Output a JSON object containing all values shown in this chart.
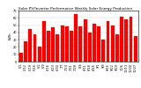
{
  "title": "Solar PV/Inverter Performance Weekly Solar Energy Production",
  "ylabel": "kWh",
  "bar_color": "#ff0000",
  "edge_color": "#cc0000",
  "background_color": "#ffffff",
  "plot_bg_color": "#ffffff",
  "grid_color": "#bbbbbb",
  "weeks": [
    "5/5",
    "5/12",
    "5/19",
    "5/26",
    "6/2",
    "6/9",
    "6/16",
    "6/23",
    "6/30",
    "7/7",
    "7/14",
    "7/21",
    "7/28",
    "8/4",
    "8/11",
    "8/18",
    "8/25",
    "9/1",
    "9/8",
    "9/15",
    "9/22",
    "9/29",
    "10/6",
    "10/13",
    "10/20",
    "10/27"
  ],
  "values": [
    12,
    28,
    45,
    38,
    20,
    55,
    42,
    47,
    38,
    50,
    48,
    42,
    65,
    48,
    58,
    40,
    52,
    48,
    30,
    55,
    50,
    38,
    62,
    58,
    62,
    35
  ],
  "ylim": [
    0,
    70
  ],
  "yticks": [
    0,
    10,
    20,
    30,
    40,
    50,
    60,
    70
  ],
  "title_fontsize": 3.0,
  "tick_fontsize": 2.5,
  "ylabel_fontsize": 2.8,
  "fig_width": 1.6,
  "fig_height": 1.0,
  "dpi": 100
}
